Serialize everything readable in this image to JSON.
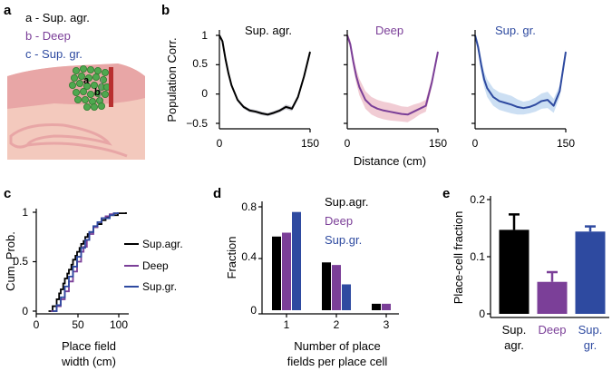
{
  "colors": {
    "sup_agr": "#000000",
    "deep": "#7b3f98",
    "sup_gr": "#2e4aa0",
    "deep_band": "#efc6cf",
    "sup_gr_band": "#c6dcf2",
    "sup_agr_band": "#c4c4cc",
    "tissue": "#e8a6a6",
    "tissue_pale": "#f3c9bd",
    "cells": "#4fa84f"
  },
  "panel_a": {
    "letter": "a",
    "legend": [
      {
        "text": "a - Sup. agr.",
        "color": "#000000"
      },
      {
        "text": "b - Deep",
        "color": "#7b3f98"
      },
      {
        "text": "c - Sup. gr.",
        "color": "#2e4aa0"
      }
    ],
    "markers": [
      "a",
      "b"
    ]
  },
  "panel_b": {
    "letter": "b",
    "ylabel": "Population Corr.",
    "xlabel": "Distance (cm)",
    "yticks": [
      "1",
      "0.5",
      "0",
      "−0.5"
    ],
    "xticks": [
      "0",
      "150"
    ],
    "titles": [
      "Sup. agr.",
      "Deep",
      "Sup. gr."
    ]
  },
  "panel_c": {
    "letter": "c",
    "ylabel": "Cum. Prob.",
    "xlabel_lines": [
      "Place field",
      "width (cm)"
    ],
    "yticks": [
      "1",
      "0.5",
      "0"
    ],
    "xticks": [
      "0",
      "50",
      "100"
    ],
    "legend": [
      {
        "text": "Sup.agr.",
        "color": "#000000"
      },
      {
        "text": "Deep",
        "color": "#7b3f98"
      },
      {
        "text": "Sup.gr.",
        "color": "#2e4aa0"
      }
    ]
  },
  "panel_d": {
    "letter": "d",
    "ylabel": "Fraction",
    "xlabel_lines": [
      "Number of place",
      "fields per place cell"
    ],
    "yticks": [
      "0.8",
      "0.4",
      "0"
    ],
    "xticks": [
      "1",
      "2",
      "3"
    ],
    "legend": [
      {
        "text": "Sup.agr.",
        "color": "#000000"
      },
      {
        "text": "Deep",
        "color": "#7b3f98"
      },
      {
        "text": "Sup.gr.",
        "color": "#2e4aa0"
      }
    ]
  },
  "panel_e": {
    "letter": "e",
    "ylabel": "Place-cell fraction",
    "yticks": [
      "0.2",
      "0.1",
      "0"
    ],
    "categories": [
      {
        "lines": [
          "Sup.",
          "agr."
        ],
        "color": "#000000"
      },
      {
        "lines": [
          "Deep"
        ],
        "color": "#7b3f98"
      },
      {
        "lines": [
          "Sup.",
          "gr."
        ],
        "color": "#2e4aa0"
      }
    ]
  },
  "chart_data": [
    {
      "type": "line",
      "panel": "b",
      "title": "Sup. agr.",
      "xlabel": "Distance (cm)",
      "ylabel": "Population Corr.",
      "xlim": [
        0,
        150
      ],
      "ylim": [
        -0.5,
        1
      ],
      "x": [
        0,
        5,
        10,
        15,
        20,
        30,
        40,
        50,
        60,
        70,
        80,
        90,
        100,
        110,
        120,
        130,
        140,
        150
      ],
      "series": [
        {
          "name": "mean",
          "color": "#000000",
          "values": [
            1.0,
            0.9,
            0.6,
            0.35,
            0.15,
            -0.1,
            -0.22,
            -0.28,
            -0.3,
            -0.33,
            -0.35,
            -0.32,
            -0.28,
            -0.22,
            -0.25,
            -0.05,
            0.3,
            0.72
          ]
        },
        {
          "name": "error band",
          "color": "#c4c4cc",
          "lower": [
            0.98,
            0.87,
            0.57,
            0.32,
            0.12,
            -0.13,
            -0.25,
            -0.31,
            -0.33,
            -0.36,
            -0.38,
            -0.35,
            -0.31,
            -0.26,
            -0.29,
            -0.09,
            0.26,
            0.68
          ],
          "upper": [
            1.02,
            0.93,
            0.63,
            0.38,
            0.18,
            -0.07,
            -0.19,
            -0.25,
            -0.27,
            -0.3,
            -0.32,
            -0.29,
            -0.25,
            -0.18,
            -0.21,
            -0.01,
            0.34,
            0.76
          ]
        }
      ]
    },
    {
      "type": "line",
      "panel": "b",
      "title": "Deep",
      "xlabel": "Distance (cm)",
      "ylabel": "Population Corr.",
      "xlim": [
        0,
        150
      ],
      "ylim": [
        -0.5,
        1
      ],
      "x": [
        0,
        5,
        10,
        15,
        20,
        30,
        40,
        50,
        60,
        70,
        80,
        90,
        100,
        110,
        120,
        130,
        140,
        150
      ],
      "series": [
        {
          "name": "mean",
          "color": "#7b3f98",
          "values": [
            1.0,
            0.85,
            0.55,
            0.3,
            0.12,
            -0.1,
            -0.2,
            -0.25,
            -0.28,
            -0.3,
            -0.32,
            -0.34,
            -0.35,
            -0.3,
            -0.25,
            -0.2,
            0.2,
            0.72
          ]
        },
        {
          "name": "error band",
          "color": "#efc6cf",
          "lower": [
            0.95,
            0.78,
            0.45,
            0.18,
            -0.02,
            -0.25,
            -0.35,
            -0.4,
            -0.43,
            -0.45,
            -0.46,
            -0.47,
            -0.48,
            -0.42,
            -0.35,
            -0.3,
            0.12,
            0.68
          ],
          "upper": [
            1.05,
            0.92,
            0.65,
            0.42,
            0.26,
            0.05,
            -0.05,
            -0.1,
            -0.13,
            -0.15,
            -0.18,
            -0.21,
            -0.22,
            -0.18,
            -0.15,
            -0.1,
            0.28,
            0.76
          ]
        }
      ]
    },
    {
      "type": "line",
      "panel": "b",
      "title": "Sup. gr.",
      "xlabel": "Distance (cm)",
      "ylabel": "Population Corr.",
      "xlim": [
        0,
        150
      ],
      "ylim": [
        -0.5,
        1
      ],
      "x": [
        0,
        5,
        10,
        15,
        20,
        30,
        40,
        50,
        60,
        70,
        80,
        90,
        100,
        110,
        120,
        130,
        140,
        150
      ],
      "series": [
        {
          "name": "mean",
          "color": "#2e4aa0",
          "values": [
            1.0,
            0.8,
            0.5,
            0.25,
            0.1,
            -0.05,
            -0.12,
            -0.15,
            -0.18,
            -0.22,
            -0.24,
            -0.22,
            -0.18,
            -0.12,
            -0.1,
            -0.2,
            0.05,
            0.72
          ]
        },
        {
          "name": "error band",
          "color": "#c6dcf2",
          "lower": [
            0.95,
            0.72,
            0.38,
            0.12,
            -0.05,
            -0.2,
            -0.27,
            -0.3,
            -0.33,
            -0.35,
            -0.35,
            -0.33,
            -0.3,
            -0.25,
            -0.24,
            -0.32,
            -0.05,
            0.68
          ],
          "upper": [
            1.05,
            0.88,
            0.62,
            0.38,
            0.25,
            0.1,
            0.03,
            0.0,
            -0.03,
            -0.09,
            -0.13,
            -0.11,
            -0.06,
            0.01,
            0.04,
            -0.08,
            0.15,
            0.76
          ]
        }
      ]
    },
    {
      "type": "line",
      "panel": "c",
      "title": "",
      "xlabel": "Place field width (cm)",
      "ylabel": "Cum. Prob.",
      "xlim": [
        0,
        120
      ],
      "ylim": [
        0,
        1
      ],
      "series": [
        {
          "name": "Sup.agr.",
          "color": "#000000",
          "x": [
            15,
            20,
            25,
            28,
            30,
            33,
            35,
            38,
            40,
            43,
            45,
            48,
            50,
            53,
            55,
            58,
            60,
            63,
            65,
            70,
            75,
            80,
            85,
            90,
            100,
            110
          ],
          "values": [
            0,
            0.05,
            0.12,
            0.18,
            0.22,
            0.28,
            0.33,
            0.38,
            0.42,
            0.47,
            0.52,
            0.56,
            0.6,
            0.64,
            0.68,
            0.71,
            0.75,
            0.78,
            0.8,
            0.85,
            0.88,
            0.92,
            0.95,
            0.97,
            0.99,
            1.0
          ]
        },
        {
          "name": "Deep",
          "color": "#7b3f98",
          "x": [
            18,
            25,
            30,
            35,
            40,
            45,
            50,
            55,
            58,
            62,
            65,
            70,
            75,
            80,
            85,
            90,
            95,
            100
          ],
          "values": [
            0,
            0.05,
            0.12,
            0.2,
            0.3,
            0.4,
            0.5,
            0.6,
            0.65,
            0.72,
            0.78,
            0.85,
            0.9,
            0.94,
            0.96,
            0.98,
            0.99,
            1.0
          ]
        },
        {
          "name": "Sup.gr.",
          "color": "#2e4aa0",
          "x": [
            20,
            25,
            30,
            35,
            40,
            45,
            50,
            55,
            60,
            65,
            70,
            75,
            80,
            90,
            95,
            100
          ],
          "values": [
            0,
            0.06,
            0.14,
            0.25,
            0.35,
            0.45,
            0.55,
            0.64,
            0.72,
            0.8,
            0.86,
            0.9,
            0.94,
            0.97,
            0.99,
            1.0
          ]
        }
      ]
    },
    {
      "type": "bar",
      "panel": "d",
      "title": "",
      "xlabel": "Number of place fields per place cell",
      "ylabel": "Fraction",
      "ylim": [
        0,
        0.8
      ],
      "categories": [
        "1",
        "2",
        "3"
      ],
      "series": [
        {
          "name": "Sup.agr.",
          "color": "#000000",
          "values": [
            0.57,
            0.37,
            0.05
          ]
        },
        {
          "name": "Deep",
          "color": "#7b3f98",
          "values": [
            0.6,
            0.35,
            0.05
          ]
        },
        {
          "name": "Sup.gr.",
          "color": "#2e4aa0",
          "values": [
            0.76,
            0.2,
            0.0
          ]
        }
      ]
    },
    {
      "type": "bar",
      "panel": "e",
      "title": "",
      "xlabel": "",
      "ylabel": "Place-cell fraction",
      "ylim": [
        0,
        0.2
      ],
      "categories": [
        "Sup. agr.",
        "Deep",
        "Sup. gr."
      ],
      "values": [
        0.147,
        0.056,
        0.144
      ],
      "errors": [
        0.027,
        0.017,
        0.009
      ],
      "colors": [
        "#000000",
        "#7b3f98",
        "#2e4aa0"
      ]
    }
  ]
}
